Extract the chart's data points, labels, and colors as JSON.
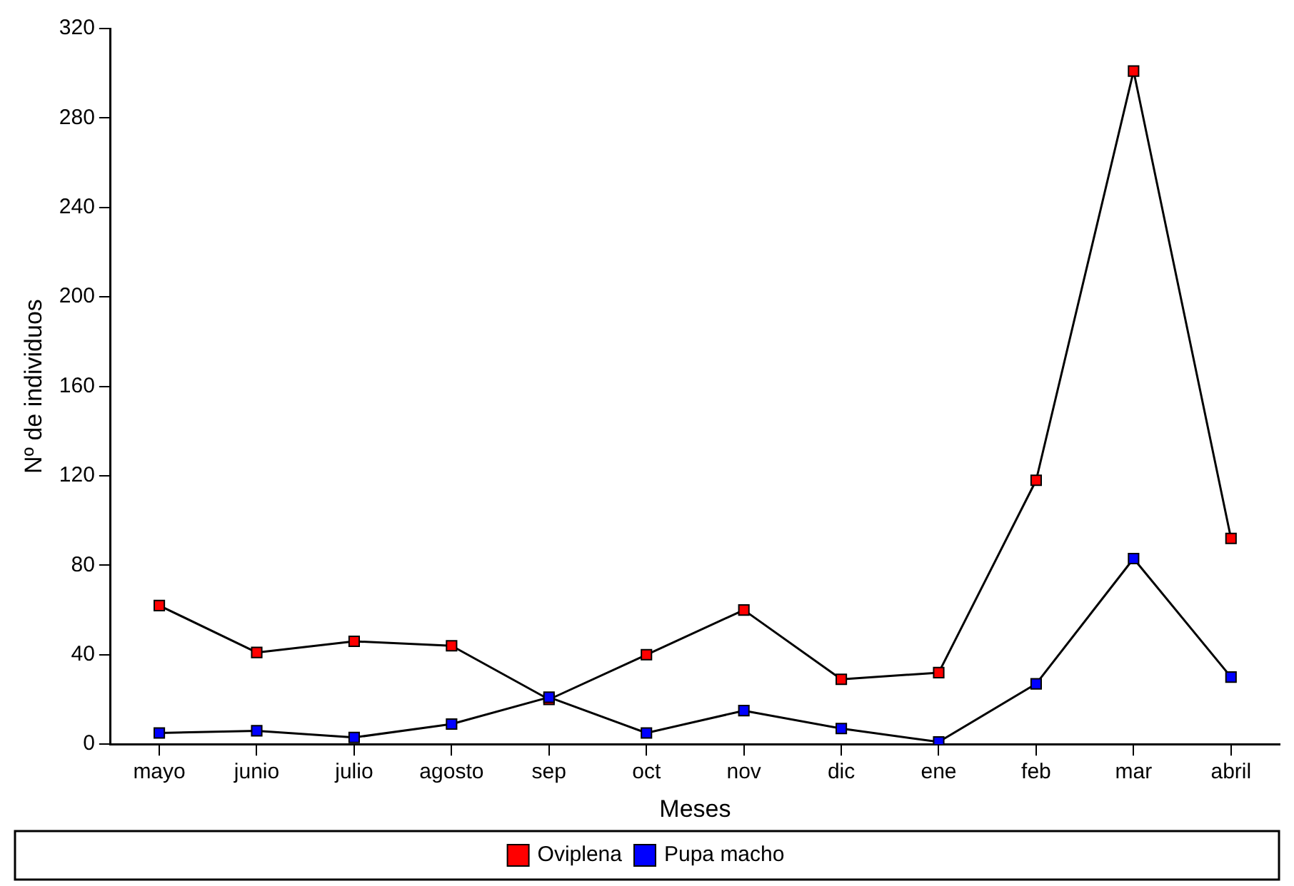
{
  "chart_data": {
    "type": "line",
    "xlabel": "Meses",
    "ylabel": "Nº de individuos",
    "categories": [
      "mayo",
      "junio",
      "julio",
      "agosto",
      "sep",
      "oct",
      "nov",
      "dic",
      "ene",
      "feb",
      "mar",
      "abril"
    ],
    "series": [
      {
        "name": "Oviplena",
        "color": "#ff0000",
        "values": [
          62,
          41,
          46,
          44,
          20,
          40,
          60,
          29,
          32,
          118,
          301,
          92
        ]
      },
      {
        "name": "Pupa macho",
        "color": "#0000ff",
        "values": [
          5,
          6,
          3,
          9,
          21,
          5,
          15,
          7,
          1,
          27,
          83,
          30
        ]
      }
    ],
    "ylim": [
      0,
      320
    ],
    "yticks": [
      0,
      40,
      80,
      120,
      160,
      200,
      240,
      280,
      320
    ],
    "grid": false,
    "legend": "bottom",
    "marker": "square",
    "line_style": "solid"
  }
}
